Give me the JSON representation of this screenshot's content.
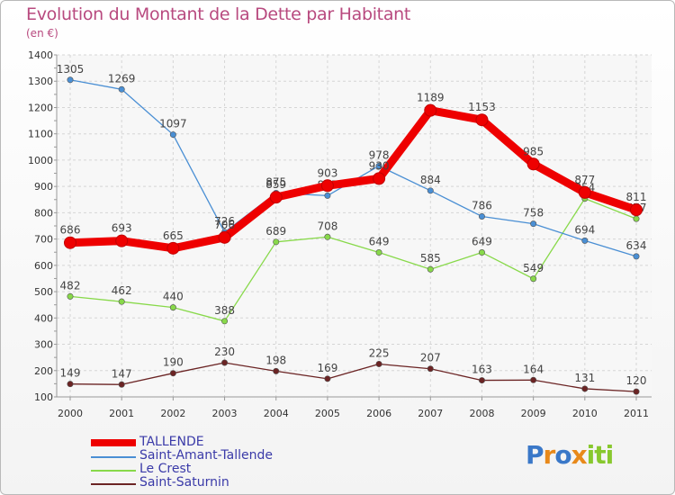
{
  "title": "Evolution du Montant de la Dette par Habitant",
  "unit": "(en €)",
  "chart_data": {
    "type": "line",
    "x": [
      "2000",
      "2001",
      "2002",
      "2003",
      "2004",
      "2005",
      "2006",
      "2007",
      "2008",
      "2009",
      "2010",
      "2011"
    ],
    "ylim": [
      100,
      1400
    ],
    "yticks": [
      100,
      200,
      300,
      400,
      500,
      600,
      700,
      800,
      900,
      1000,
      1100,
      1200,
      1300,
      1400
    ],
    "grid": true,
    "legend_position": "bottom-left",
    "series": [
      {
        "name": "TALLENDE",
        "color": "#ee0000",
        "values": [
          686,
          693,
          665,
          706,
          859,
          903,
          930,
          1189,
          1153,
          985,
          877,
          811
        ]
      },
      {
        "name": "Saint-Amant-Tallende",
        "color": "#4a8fd4",
        "values": [
          1305,
          1269,
          1097,
          726,
          875,
          865,
          978,
          884,
          786,
          758,
          694,
          634
        ]
      },
      {
        "name": "Le Crest",
        "color": "#88d94a",
        "values": [
          482,
          462,
          440,
          388,
          689,
          708,
          649,
          585,
          649,
          549,
          854,
          777
        ]
      },
      {
        "name": "Saint-Saturnin",
        "color": "#6b2424",
        "values": [
          149,
          147,
          190,
          230,
          198,
          169,
          225,
          207,
          163,
          164,
          131,
          120
        ]
      }
    ]
  },
  "logo": {
    "letters": [
      "P",
      "r",
      "o",
      "x",
      "i",
      "t",
      "i"
    ],
    "colors": [
      "#3a78c8",
      "#e8891a",
      "#3a78c8",
      "#e8891a",
      "#88c82e",
      "#88c82e",
      "#88c82e"
    ]
  }
}
